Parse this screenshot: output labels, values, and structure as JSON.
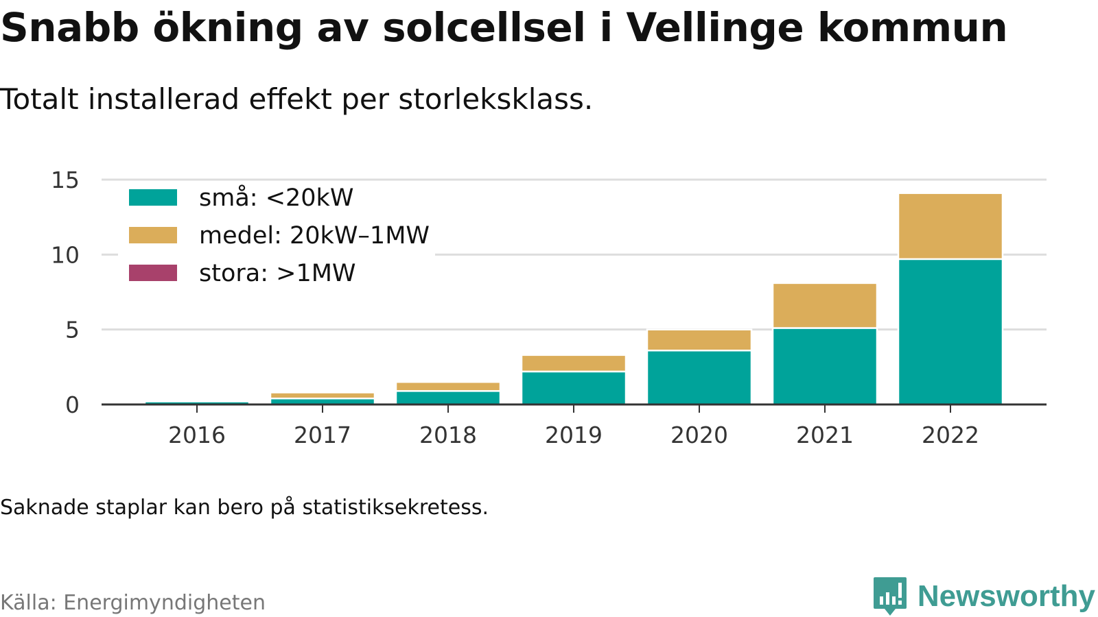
{
  "header": {
    "title": "Snabb ökning av solcellsel i Vellinge kommun",
    "subtitle": "Totalt installerad effekt per storleksklass."
  },
  "footer": {
    "note": "Saknade staplar kan bero på statistiksekretess.",
    "source": "Källa: Energimyndigheten",
    "brand": "Newsworthy",
    "brand_icon": "newsworthy-chart-icon"
  },
  "colors": {
    "small": "#00a39a",
    "medium": "#dbad5a",
    "large": "#a8416b",
    "grid": "#dddddd",
    "axis": "#333333",
    "brand": "#3f9c93"
  },
  "chart_data": {
    "type": "bar",
    "stacked": true,
    "categories": [
      "2016",
      "2017",
      "2018",
      "2019",
      "2020",
      "2021",
      "2022"
    ],
    "series": [
      {
        "name": "små: <20kW",
        "color": "#00a39a",
        "values": [
          0.2,
          0.4,
          0.9,
          2.2,
          3.6,
          5.1,
          9.7
        ]
      },
      {
        "name": "medel: 20kW–1MW",
        "color": "#dbad5a",
        "values": [
          0,
          0.4,
          0.6,
          1.1,
          1.4,
          3.0,
          4.4
        ]
      },
      {
        "name": "stora: >1MW",
        "color": "#a8416b",
        "values": [
          0,
          0,
          0,
          0,
          0,
          0,
          0
        ]
      }
    ],
    "title": "Snabb ökning av solcellsel i Vellinge kommun",
    "subtitle": "Totalt installerad effekt per storleksklass.",
    "xlabel": "",
    "ylabel": "",
    "ylim": [
      0,
      15
    ],
    "yticks": [
      0,
      5,
      10,
      15
    ],
    "grid": true,
    "legend_position": "top-left"
  }
}
